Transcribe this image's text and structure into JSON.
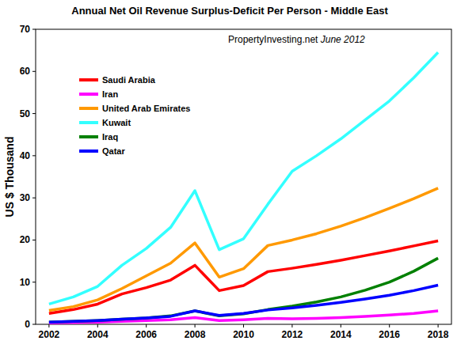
{
  "chart_data": {
    "type": "line",
    "title": "Annual Net Oil Revenue Surplus-Deficit Per Person - Middle East",
    "annotations": [
      "PropertyInvesting.net",
      "June 2012"
    ],
    "y_label": "US $ Thousand",
    "x": [
      2002,
      2003,
      2004,
      2005,
      2006,
      2007,
      2008,
      2009,
      2010,
      2011,
      2012,
      2013,
      2014,
      2015,
      2016,
      2017,
      2018
    ],
    "xlim": [
      2001.45,
      2018.55
    ],
    "xticks": [
      2002,
      2004,
      2006,
      2008,
      2010,
      2012,
      2014,
      2016,
      2018
    ],
    "ylim": [
      0,
      70
    ],
    "yticks": [
      0,
      10,
      20,
      30,
      40,
      50,
      60,
      70
    ],
    "grid": false,
    "legend": "upper-left",
    "series": [
      {
        "name": "Saudi Arabia",
        "color": "#ff0000",
        "values": [
          2.6,
          3.5,
          4.8,
          7.2,
          8.7,
          10.5,
          14,
          8,
          9.2,
          12.5,
          13.3,
          14.2,
          15.2,
          16.3,
          17.4,
          18.6,
          19.8
        ]
      },
      {
        "name": "Iran",
        "color": "#ff00ff",
        "values": [
          0.3,
          0.4,
          0.5,
          0.7,
          0.9,
          1.1,
          1.6,
          0.9,
          1.1,
          1.4,
          1.3,
          1.4,
          1.6,
          1.9,
          2.2,
          2.6,
          3.2
        ]
      },
      {
        "name": "United Arab Emirates",
        "color": "#ff9900",
        "values": [
          3.3,
          4.2,
          5.8,
          8.5,
          11.5,
          14.5,
          19.3,
          11.2,
          13.2,
          18.7,
          20,
          21.5,
          23.3,
          25.3,
          27.5,
          29.8,
          32.3
        ]
      },
      {
        "name": "Kuwait",
        "color": "#33ffff",
        "values": [
          4.8,
          6.5,
          9,
          14,
          18,
          23,
          31.7,
          17.7,
          20.3,
          28.5,
          36.3,
          40,
          44,
          48.5,
          53,
          58.5,
          64.5
        ]
      },
      {
        "name": "Iraq",
        "color": "#008000",
        "values": [
          0.5,
          0.7,
          0.9,
          1.2,
          1.5,
          2,
          3.2,
          2,
          2.5,
          3.5,
          4.3,
          5.3,
          6.5,
          8.1,
          10,
          12.6,
          15.7
        ]
      },
      {
        "name": "Qatar",
        "color": "#0000ff",
        "values": [
          0.5,
          0.7,
          0.9,
          1.2,
          1.5,
          1.9,
          3.2,
          2.1,
          2.6,
          3.4,
          3.9,
          4.5,
          5.2,
          6,
          6.9,
          8,
          9.3
        ]
      }
    ]
  }
}
